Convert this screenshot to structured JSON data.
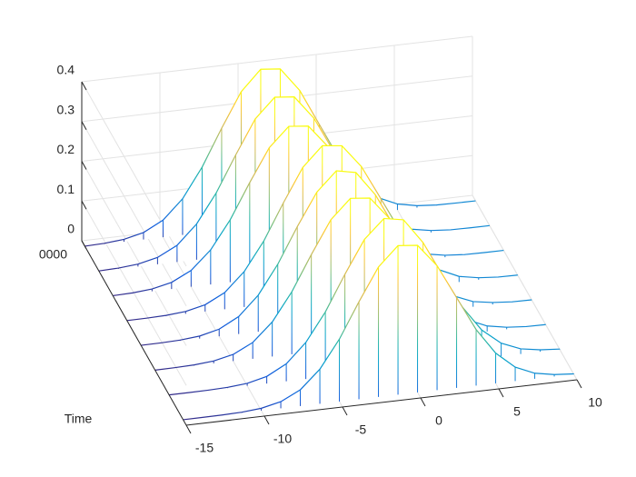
{
  "chart_data": {
    "type": "mesh",
    "x_label": null,
    "time_label": "Time",
    "time_tick_labels": [
      "0000"
    ],
    "x": [
      -15,
      -13.75,
      -12.5,
      -11.25,
      -10,
      -8.75,
      -7.5,
      -6.25,
      -5,
      -3.75,
      -2.5,
      -1.25,
      0,
      1.25,
      2.5,
      3.75,
      5,
      6.25,
      7.5,
      8.75,
      10
    ],
    "xlim": [
      -15,
      10
    ],
    "xticks": [
      -15,
      -10,
      -5,
      0,
      5,
      10
    ],
    "zlim": [
      0,
      0.4
    ],
    "zticks": [
      0,
      0.1,
      0.2,
      0.3,
      0.4
    ],
    "grid": true,
    "colormap": [
      "#352a87",
      "#0f5cdd",
      "#1481d6",
      "#06a4ca",
      "#2eb7a4",
      "#87bf77",
      "#d1bb59",
      "#fec832",
      "#f9fb0e"
    ],
    "series": [
      {
        "values": [
          0,
          0.0001,
          0.0004,
          0.0017,
          0.0058,
          0.0167,
          0.041,
          0.087,
          0.157,
          0.245,
          0.327,
          0.375,
          0.37,
          0.313,
          0.227,
          0.141,
          0.076,
          0.035,
          0.014,
          0.005,
          0.001
        ]
      },
      {
        "values": [
          0,
          0.0001,
          0.0005,
          0.0019,
          0.0062,
          0.018,
          0.044,
          0.092,
          0.163,
          0.252,
          0.334,
          0.381,
          0.372,
          0.309,
          0.221,
          0.136,
          0.072,
          0.033,
          0.013,
          0.005,
          0.001
        ]
      },
      {
        "values": [
          0.0001,
          0.0004,
          0.0017,
          0.0058,
          0.0167,
          0.041,
          0.087,
          0.157,
          0.245,
          0.327,
          0.375,
          0.37,
          0.313,
          0.227,
          0.141,
          0.076,
          0.035,
          0.014,
          0.005,
          0.001,
          0.0003
        ]
      },
      {
        "values": [
          0.0001,
          0.0005,
          0.0019,
          0.0063,
          0.018,
          0.044,
          0.092,
          0.164,
          0.253,
          0.334,
          0.382,
          0.372,
          0.31,
          0.222,
          0.137,
          0.073,
          0.033,
          0.013,
          0.005,
          0.001,
          0.0003
        ]
      },
      {
        "values": [
          0.0001,
          0.0004,
          0.0017,
          0.0059,
          0.017,
          0.042,
          0.089,
          0.16,
          0.25,
          0.334,
          0.383,
          0.377,
          0.319,
          0.232,
          0.144,
          0.078,
          0.036,
          0.014,
          0.005,
          0.001,
          0.0003
        ]
      },
      {
        "values": [
          0.0004,
          0.0017,
          0.0058,
          0.0167,
          0.041,
          0.087,
          0.157,
          0.245,
          0.327,
          0.375,
          0.37,
          0.313,
          0.227,
          0.141,
          0.076,
          0.035,
          0.014,
          0.005,
          0.001,
          0.0003,
          0.0001
        ]
      },
      {
        "values": [
          0.0004,
          0.0018,
          0.006,
          0.0172,
          0.042,
          0.09,
          0.162,
          0.252,
          0.337,
          0.386,
          0.381,
          0.322,
          0.234,
          0.145,
          0.078,
          0.036,
          0.014,
          0.005,
          0.001,
          0.0003,
          0.0001
        ]
      },
      {
        "values": [
          0.0004,
          0.0018,
          0.0061,
          0.0175,
          0.043,
          0.091,
          0.165,
          0.257,
          0.343,
          0.394,
          0.389,
          0.329,
          0.238,
          0.148,
          0.08,
          0.037,
          0.015,
          0.005,
          0.001,
          0.0003,
          0.0001
        ]
      }
    ]
  }
}
